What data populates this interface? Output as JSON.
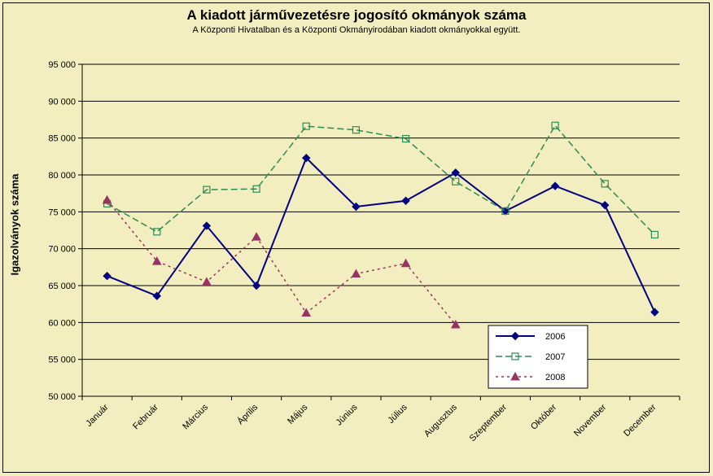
{
  "chart_data": {
    "type": "line",
    "title": "A  kiadott járművezetésre  jogosító okmányok száma",
    "subtitle": "A  Központi Hivatalban és a Központi Okmányirodában kiadott okmányokkal együtt.",
    "ylabel": "Igazolványok száma",
    "xlabel": "",
    "categories": [
      "Január",
      "Február",
      "Március",
      "Április",
      "Május",
      "Június",
      "Július",
      "Augusztus",
      "Szeptember",
      "Október",
      "November",
      "December"
    ],
    "ylim": [
      50000,
      95000
    ],
    "yticks": [
      50000,
      55000,
      60000,
      65000,
      70000,
      75000,
      80000,
      85000,
      90000,
      95000
    ],
    "ytick_labels": [
      "50 000",
      "55 000",
      "60 000",
      "65 000",
      "70 000",
      "75 000",
      "80 000",
      "85 000",
      "90 000",
      "95 000"
    ],
    "grid": true,
    "legend_position": "bottom-right",
    "series": [
      {
        "name": "2006",
        "color": "#000080",
        "marker": "diamond",
        "dash": "solid",
        "values": [
          66300,
          63600,
          73100,
          65000,
          82300,
          75700,
          76500,
          80300,
          75100,
          78500,
          75900,
          61400
        ]
      },
      {
        "name": "2007",
        "color": "#2e8b57",
        "marker": "square-open",
        "dash": "dashed",
        "values": [
          76100,
          72300,
          78000,
          78100,
          86600,
          86100,
          84900,
          79100,
          75100,
          86700,
          78800,
          71900
        ]
      },
      {
        "name": "2008",
        "color": "#993366",
        "marker": "triangle",
        "dash": "dotted",
        "values": [
          76600,
          68300,
          65500,
          71600,
          61300,
          66600,
          68000,
          59700,
          null,
          null,
          null,
          null
        ]
      }
    ]
  }
}
